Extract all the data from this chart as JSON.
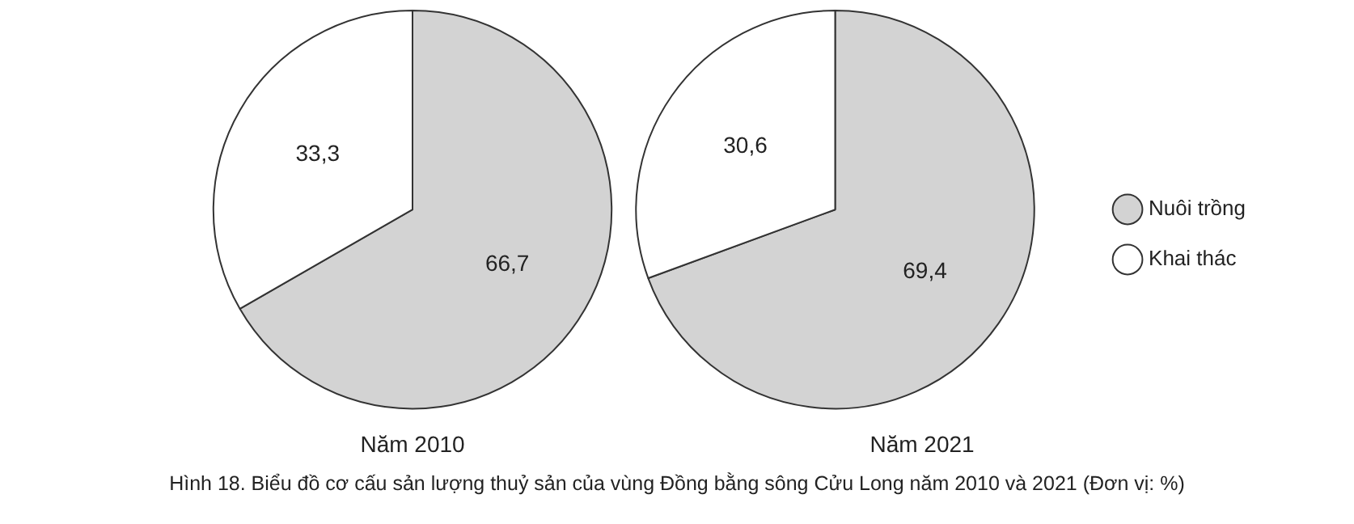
{
  "chart_data": [
    {
      "type": "pie",
      "title": "Năm 2010",
      "categories": [
        null,
        null
      ],
      "values": [
        66.7,
        33.3
      ],
      "colors": [
        "#d3d3d3",
        "#ffffff"
      ],
      "value_labels": [
        "66,7",
        "33,3"
      ],
      "legend": false,
      "annotations": [
        "Hình 18. Biểu đồ cơ cấu sản lượng thuỷ sản của vùng Đồng bằng sông Cửu Long năm 2010 và 2021 (Đơn vị: %)"
      ]
    },
    {
      "type": "pie",
      "title": "Năm 2021",
      "categories": [
        "Nuôi trồng",
        "Khai thác"
      ],
      "values": [
        69.4,
        30.6
      ],
      "colors": [
        "#d3d3d3",
        "#ffffff"
      ],
      "value_labels": [
        "69,4",
        "30,6"
      ],
      "legend": "right"
    }
  ]
}
